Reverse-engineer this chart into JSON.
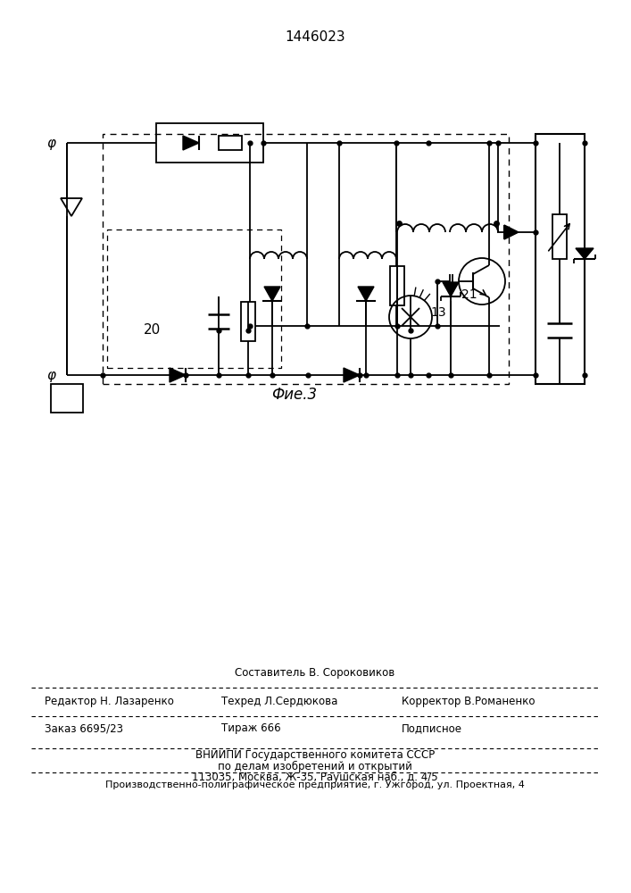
{
  "title": "1446023",
  "fig_label": "Фие.3",
  "bottom_text_line1": "Составитель В. Сороковиков",
  "bottom_text_line2_left": "Редактор Н. Лазаренко",
  "bottom_text_line2_mid": "Техред Л.Сердюкова",
  "bottom_text_line2_right": "Корректор В.Романенко",
  "bottom_text_line3_left": "Заказ 6695/23",
  "bottom_text_line3_mid": "Тираж 666",
  "bottom_text_line3_right": "Подписное",
  "bottom_text_line4": "ВНИИПИ Государственного комитета СССР",
  "bottom_text_line5": "по делам изобретений и открытий",
  "bottom_text_line6": "113035, Москва, Ж-35, Раушская наб., д. 4/5",
  "bottom_text_line7": "Производственно-полиграфическое предприятие, г. Ужгород, ул. Проектная, 4",
  "bg_color": "#ffffff",
  "line_color": "#000000",
  "label_20": "20",
  "label_21": "21",
  "label_13": "13"
}
